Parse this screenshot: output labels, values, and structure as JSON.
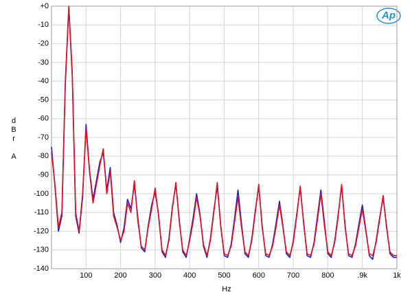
{
  "chart_data": {
    "type": "line",
    "xlabel": "Hz",
    "ylabel": "dBr A",
    "logo": "Ap",
    "x": [
      0,
      10,
      20,
      30,
      40,
      50,
      60,
      70,
      80,
      90,
      100,
      110,
      120,
      130,
      140,
      150,
      160,
      170,
      180,
      190,
      200,
      210,
      220,
      230,
      240,
      250,
      260,
      270,
      280,
      290,
      300,
      310,
      320,
      330,
      340,
      350,
      360,
      370,
      380,
      390,
      400,
      410,
      420,
      430,
      440,
      450,
      460,
      470,
      480,
      490,
      500,
      510,
      520,
      530,
      540,
      550,
      560,
      570,
      580,
      590,
      600,
      610,
      620,
      630,
      640,
      650,
      660,
      670,
      680,
      690,
      700,
      710,
      720,
      730,
      740,
      750,
      760,
      770,
      780,
      790,
      800,
      810,
      820,
      830,
      840,
      850,
      860,
      870,
      880,
      890,
      900,
      910,
      920,
      930,
      940,
      950,
      960,
      970,
      980,
      990,
      1000
    ],
    "series": [
      {
        "color": "#1c1cd8",
        "values": [
          -75,
          -96,
          -120,
          -112,
          -42,
          -1,
          -37,
          -112,
          -121,
          -102,
          -63,
          -87,
          -103,
          -93,
          -83,
          -78,
          -98,
          -86,
          -110,
          -117,
          -126,
          -118,
          -103,
          -108,
          -95,
          -113,
          -129,
          -131,
          -117,
          -106,
          -99,
          -111,
          -131,
          -134,
          -124,
          -107,
          -95,
          -114,
          -131,
          -134,
          -124,
          -113,
          -100,
          -111,
          -128,
          -134,
          -124,
          -109,
          -96,
          -117,
          -133,
          -134,
          -127,
          -113,
          -98,
          -116,
          -132,
          -134,
          -124,
          -109,
          -96,
          -117,
          -133,
          -134,
          -127,
          -116,
          -104,
          -117,
          -132,
          -134,
          -125,
          -111,
          -97,
          -115,
          -133,
          -134,
          -126,
          -112,
          -98,
          -115,
          -132,
          -134,
          -125,
          -111,
          -96,
          -117,
          -133,
          -134,
          -127,
          -116,
          -106,
          -119,
          -133,
          -135,
          -125,
          -113,
          -102,
          -117,
          -132,
          -134,
          -134
        ]
      },
      {
        "color": "#e0101c",
        "values": [
          -78,
          -95,
          -118,
          -110,
          -40,
          0,
          -35,
          -110,
          -120,
          -100,
          -65,
          -88,
          -105,
          -95,
          -85,
          -76,
          -100,
          -88,
          -112,
          -118,
          -125,
          -120,
          -105,
          -110,
          -93,
          -115,
          -128,
          -130,
          -118,
          -108,
          -97,
          -112,
          -130,
          -133,
          -125,
          -108,
          -94,
          -115,
          -130,
          -133,
          -125,
          -115,
          -102,
          -112,
          -127,
          -133,
          -125,
          -110,
          -94,
          -118,
          -132,
          -133,
          -128,
          -115,
          -102,
          -118,
          -131,
          -133,
          -125,
          -110,
          -95,
          -118,
          -132,
          -133,
          -128,
          -118,
          -106,
          -118,
          -131,
          -133,
          -126,
          -112,
          -96,
          -116,
          -132,
          -133,
          -127,
          -114,
          -100,
          -117,
          -131,
          -133,
          -126,
          -112,
          -95,
          -118,
          -132,
          -133,
          -128,
          -118,
          -108,
          -120,
          -132,
          -133,
          -126,
          -114,
          -101,
          -118,
          -131,
          -133,
          -133
        ]
      }
    ],
    "xlim": [
      0,
      1000
    ],
    "xticks": [
      100,
      200,
      300,
      400,
      500,
      600,
      700,
      800,
      {
        "value": 900,
        "label": ".9k"
      },
      {
        "value": 1000,
        "label": "1k"
      }
    ],
    "ylim": [
      -140,
      0
    ],
    "yticks": [
      {
        "value": 0,
        "label": "+0"
      },
      -10,
      -20,
      -30,
      -40,
      -50,
      -60,
      -70,
      -80,
      -90,
      -100,
      -110,
      -120,
      -130,
      -140
    ],
    "grid": true
  }
}
